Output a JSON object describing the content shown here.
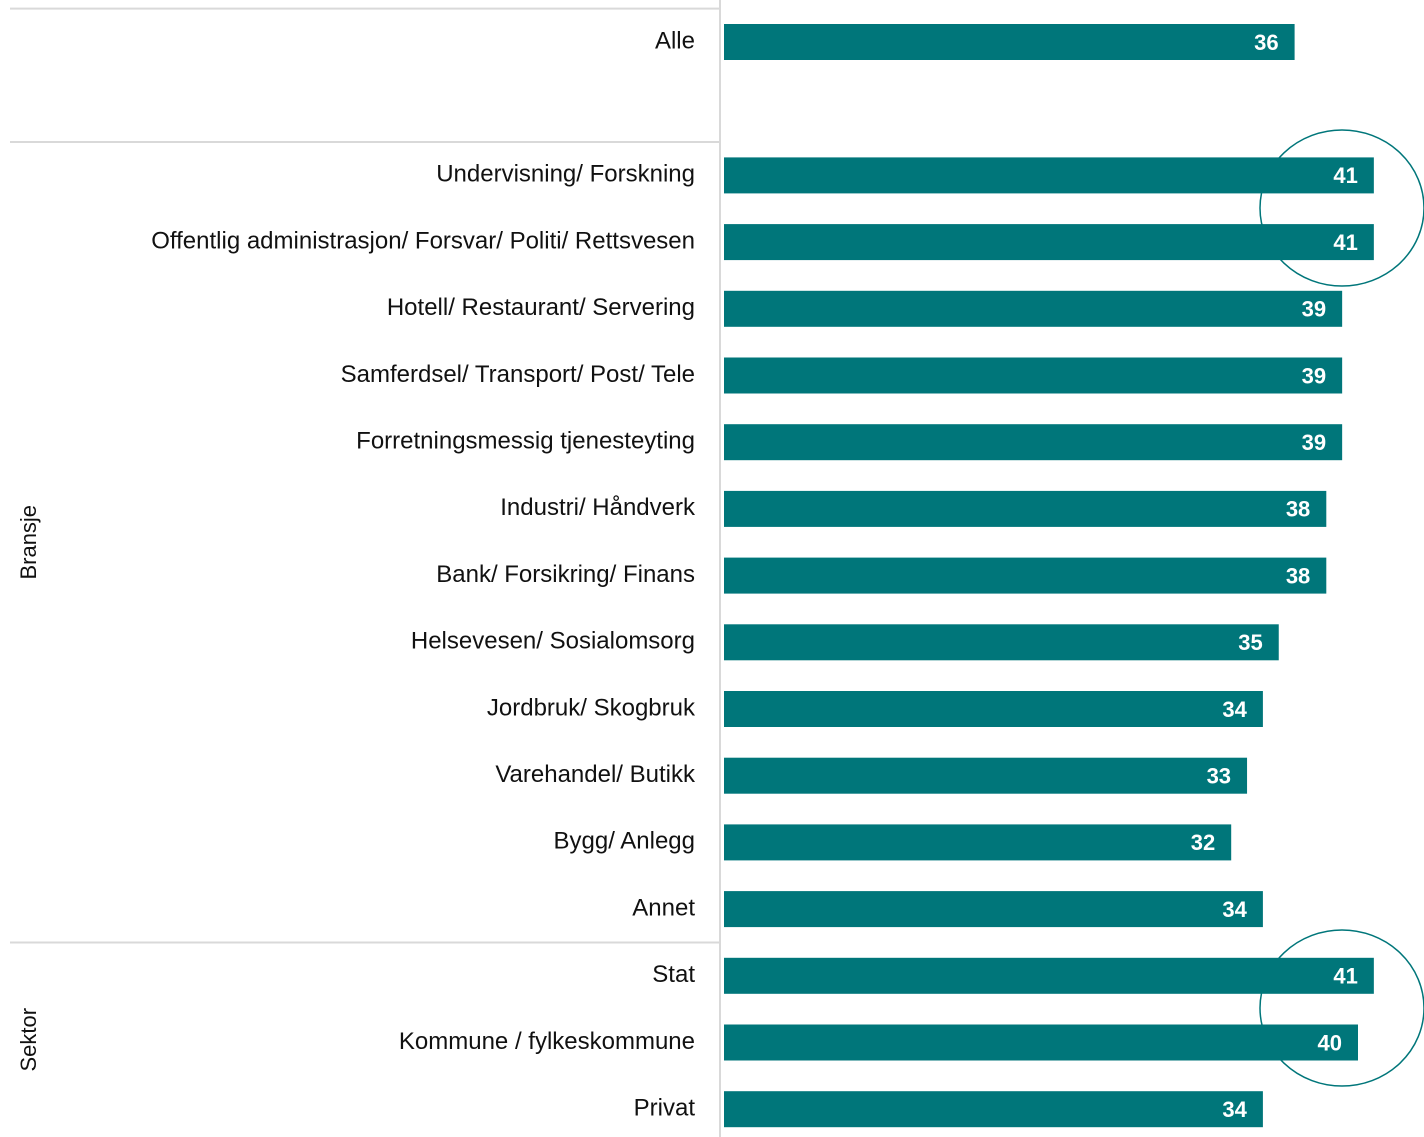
{
  "chart_data": {
    "type": "bar",
    "orientation": "horizontal",
    "color": "#00767a",
    "groups": [
      {
        "categories": [
          "Alle"
        ],
        "values": [
          36
        ]
      },
      {
        "name": "Bransje",
        "categories": [
          "Undervisning/ Forskning",
          "Offentlig administrasjon/ Forsvar/ Politi/ Rettsvesen",
          "Hotell/ Restaurant/ Servering",
          "Samferdsel/ Transport/ Post/ Tele",
          "Forretningsmessig tjenesteyting",
          "Industri/ Håndverk",
          "Bank/ Forsikring/ Finans",
          "Helsevesen/ Sosialomsorg",
          "Jordbruk/ Skogbruk",
          "Varehandel/ Butikk",
          "Bygg/ Anlegg",
          "Annet"
        ],
        "values": [
          41,
          41,
          39,
          39,
          39,
          38,
          38,
          35,
          34,
          33,
          32,
          34
        ]
      },
      {
        "name": "Sektor",
        "categories": [
          "Stat",
          "Kommune / fylkeskommune",
          "Privat"
        ],
        "values": [
          41,
          40,
          34
        ]
      }
    ]
  }
}
